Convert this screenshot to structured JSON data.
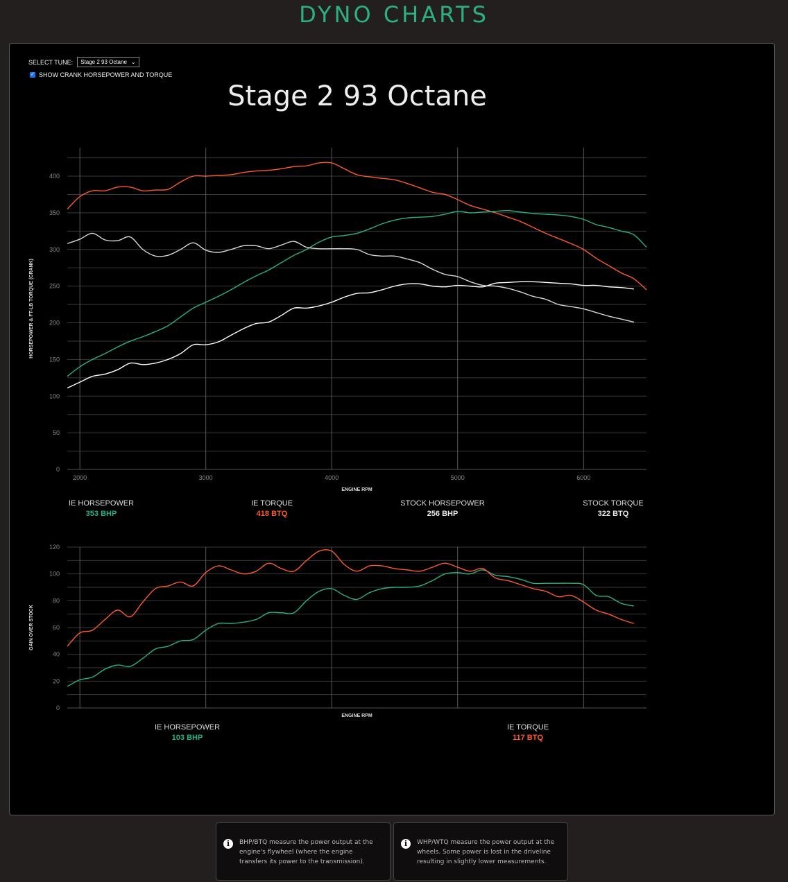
{
  "header": {
    "title": "DYNO CHARTS"
  },
  "controls": {
    "select_label": "SELECT TUNE:",
    "selected_tune": "Stage 2 93 Octane",
    "crank_checkbox_label": "SHOW CRANK HORSEPOWER AND TORQUE",
    "crank_checked": true
  },
  "colors": {
    "accent": "#2bb07f",
    "torque": "#ff5a2a",
    "stock": "#e8e8e8"
  },
  "legend_main": [
    {
      "label": "IE HORSEPOWER",
      "value": "353 BHP",
      "color": "#2bb07f"
    },
    {
      "label": "IE TORQUE",
      "value": "418 BTQ",
      "color": "#ff5a2a"
    },
    {
      "label": "STOCK HORSEPOWER",
      "value": "256 BHP",
      "color": "#e8e8e8"
    },
    {
      "label": "STOCK TORQUE",
      "value": "322 BTQ",
      "color": "#e8e8e8"
    }
  ],
  "legend_gain": [
    {
      "label": "IE HORSEPOWER",
      "value": "103 BHP",
      "color": "#2bb07f"
    },
    {
      "label": "IE TORQUE",
      "value": "117 BTQ",
      "color": "#ff5a2a"
    }
  ],
  "info": [
    {
      "text": "BHP/BTQ measure the power output at the engine's flywheel (where the engine transfers its power to the transmission)."
    },
    {
      "text": "WHP/WTQ measure the power output at the wheels. Some power is lost in the driveline resulting in slightly lower measurements."
    }
  ],
  "chart_data": [
    {
      "type": "line",
      "title": "Stage 2 93 Octane",
      "xlabel": "ENGINE RPM",
      "ylabel": "HORSEPOWER & FT-LB TORQUE (CRANK)",
      "xlim": [
        1900,
        6500
      ],
      "ylim": [
        0,
        425
      ],
      "xticks": [
        2000,
        3000,
        4000,
        5000,
        6000
      ],
      "yticks": [
        0,
        50,
        100,
        150,
        200,
        250,
        300,
        350,
        400
      ],
      "x_start": 1900,
      "x_step": 100,
      "series": [
        {
          "name": "IE Torque",
          "color": "#ff5a2a",
          "values": [
            355,
            372,
            380,
            380,
            385,
            385,
            380,
            381,
            382,
            392,
            400,
            400,
            401,
            402,
            405,
            407,
            408,
            410,
            413,
            414,
            418,
            418,
            410,
            402,
            399,
            397,
            395,
            390,
            384,
            378,
            375,
            368,
            360,
            355,
            350,
            344,
            338,
            330,
            322,
            315,
            308,
            300,
            288,
            278,
            268,
            260,
            245
          ]
        },
        {
          "name": "IE Horsepower",
          "color": "#2bb07f",
          "values": [
            127,
            140,
            150,
            158,
            167,
            175,
            181,
            188,
            196,
            208,
            220,
            228,
            236,
            245,
            255,
            264,
            272,
            282,
            292,
            300,
            310,
            317,
            319,
            322,
            328,
            335,
            340,
            343,
            344,
            345,
            348,
            352,
            350,
            351,
            352,
            353,
            351,
            349,
            348,
            347,
            345,
            341,
            334,
            330,
            325,
            320,
            303
          ]
        },
        {
          "name": "Stock Torque",
          "color": "#d8d8d8",
          "values": [
            308,
            314,
            322,
            313,
            312,
            317,
            300,
            291,
            292,
            300,
            309,
            299,
            296,
            300,
            305,
            305,
            301,
            306,
            311,
            303,
            301,
            301,
            301,
            300,
            293,
            291,
            291,
            287,
            282,
            273,
            266,
            263,
            256,
            251,
            250,
            247,
            242,
            236,
            232,
            225,
            222,
            219,
            214,
            209,
            205,
            201
          ]
        },
        {
          "name": "Stock Horsepower",
          "color": "#ffffff",
          "values": [
            111,
            119,
            127,
            130,
            136,
            145,
            143,
            145,
            150,
            158,
            170,
            170,
            174,
            183,
            192,
            199,
            201,
            210,
            220,
            220,
            223,
            228,
            235,
            240,
            241,
            245,
            250,
            253,
            253,
            250,
            249,
            251,
            250,
            249,
            254,
            255,
            256,
            256,
            255,
            254,
            253,
            251,
            251,
            249,
            248,
            246
          ]
        }
      ]
    },
    {
      "type": "line",
      "title": "",
      "xlabel": "ENGINE RPM",
      "ylabel": "GAIN OVER STOCK",
      "xlim": [
        1900,
        6500
      ],
      "ylim": [
        0,
        120
      ],
      "xticks": [
        2000,
        3000,
        4000,
        5000,
        6000
      ],
      "yticks": [
        0,
        20,
        40,
        60,
        80,
        100,
        120
      ],
      "x_start": 1900,
      "x_step": 100,
      "series": [
        {
          "name": "IE Horsepower Gain",
          "color": "#2bb07f",
          "values": [
            16,
            21,
            23,
            29,
            32,
            31,
            37,
            44,
            46,
            50,
            51,
            58,
            63,
            63,
            64,
            66,
            71,
            71,
            71,
            80,
            87,
            89,
            84,
            81,
            86,
            89,
            90,
            90,
            91,
            95,
            100,
            101,
            100,
            103,
            99,
            98,
            96,
            93,
            93,
            93,
            93,
            92,
            84,
            83,
            78,
            76
          ]
        },
        {
          "name": "IE Torque Gain",
          "color": "#ff5a2a",
          "values": [
            46,
            56,
            58,
            66,
            73,
            68,
            79,
            89,
            91,
            94,
            91,
            101,
            106,
            103,
            100,
            102,
            108,
            104,
            102,
            110,
            117,
            117,
            107,
            102,
            106,
            106,
            104,
            103,
            102,
            105,
            108,
            105,
            102,
            104,
            97,
            95,
            92,
            89,
            87,
            83,
            84,
            79,
            73,
            70,
            66,
            63
          ]
        }
      ]
    }
  ]
}
